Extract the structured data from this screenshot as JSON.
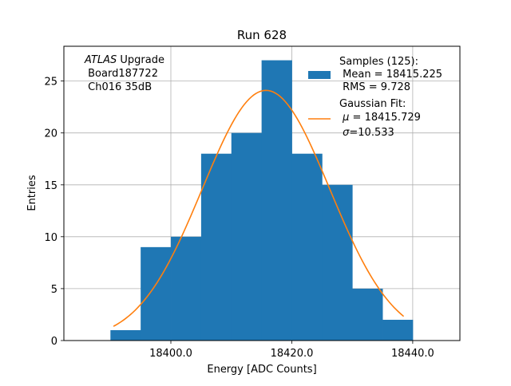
{
  "chart_data": {
    "type": "bar",
    "title": "Run 628",
    "xlabel": "Energy [ADC Counts]",
    "ylabel": "Entries",
    "xlim": [
      18382.3,
      18447.8
    ],
    "ylim": [
      0,
      28.35
    ],
    "xticks": [
      18400.0,
      18420.0,
      18440.0
    ],
    "xtick_labels": [
      "18400.0",
      "18420.0",
      "18440.0"
    ],
    "yticks": [
      0,
      5,
      10,
      15,
      20,
      25
    ],
    "ytick_labels": [
      "0",
      "5",
      "10",
      "15",
      "20",
      "25"
    ],
    "grid": true,
    "bins": {
      "edges": [
        18390,
        18395,
        18400,
        18405,
        18410,
        18415,
        18420,
        18425,
        18430,
        18435,
        18440
      ],
      "counts": [
        1,
        9,
        10,
        18,
        20,
        27,
        18,
        15,
        5,
        2
      ]
    },
    "fit": {
      "type": "gaussian",
      "mu": 18415.729,
      "sigma": 10.533,
      "amplitude": 24.1,
      "x_range": [
        18390.5,
        18438.5
      ]
    },
    "colors": {
      "bars": "#1f77b4",
      "fit": "#ff7f0e"
    },
    "annotation": {
      "line1_italic": "ATLAS",
      "line1_rest": " Upgrade",
      "line2": " Board187722",
      "line3": " Ch016 35dB"
    },
    "legend": {
      "placement": "top-right",
      "samples": {
        "line1": "Samples (125):",
        "line2": " Mean = 18415.225",
        "line3": " RMS = 9.728"
      },
      "fit": {
        "line1": "Gaussian Fit:",
        "line2_symbol": "μ",
        "line2_rest": " = 18415.729",
        "line3_symbol": "σ",
        "line3_rest": "=10.533"
      }
    }
  }
}
